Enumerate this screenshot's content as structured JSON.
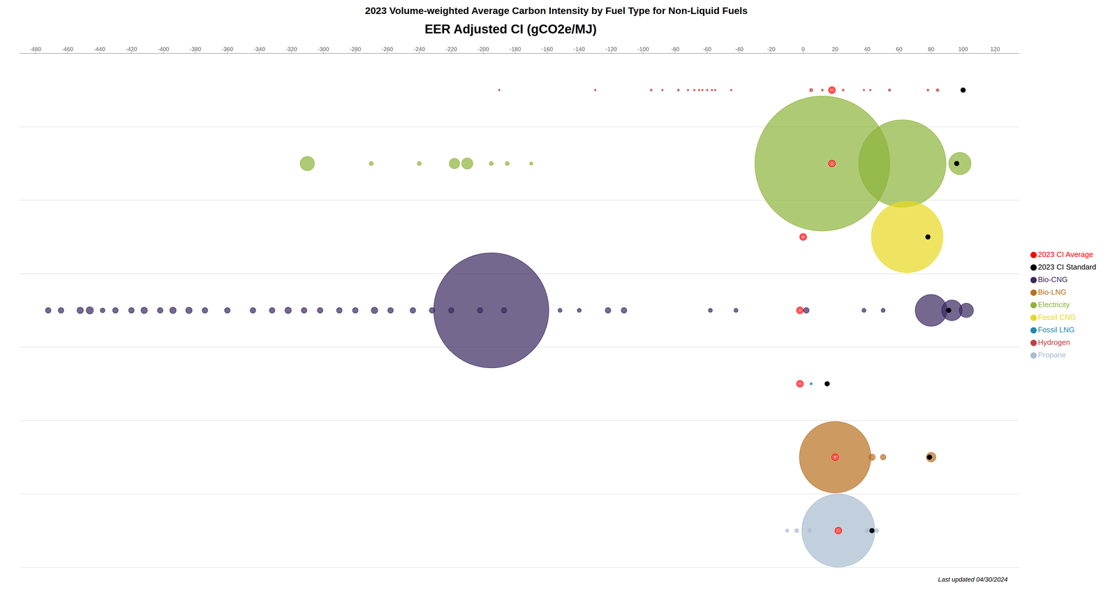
{
  "chart_data": {
    "type": "scatter",
    "title": "2023 Volume-weighted Average Carbon Intensity by Fuel Type for Non-Liquid Fuels",
    "xlabel": "EER Adjusted CI (gCO2e/MJ)",
    "annotations": [
      "Last updated 04/30/2024"
    ],
    "xlim": [
      -490,
      135
    ],
    "xticks": [
      -480,
      -460,
      -440,
      -420,
      -400,
      -380,
      -360,
      -340,
      -320,
      -300,
      -280,
      -260,
      -240,
      -220,
      -200,
      -180,
      -160,
      -140,
      -120,
      -100,
      -80,
      -60,
      -40,
      -20,
      0,
      20,
      40,
      60,
      80,
      100,
      120
    ],
    "grid": true,
    "legend": "right",
    "tick_labels": "x",
    "series": [
      {
        "name": "Hydrogen",
        "type": "bubble",
        "color": "#c04040",
        "x": [
          -190,
          -130,
          -95,
          -88,
          -78,
          -72,
          -68,
          -65,
          -63,
          -60,
          -57,
          -55,
          -45,
          5,
          12,
          18,
          25,
          38,
          42,
          54,
          78,
          84
        ],
        "sizes": [
          2,
          2,
          2.5,
          2,
          2.5,
          2,
          2,
          2,
          2,
          2,
          2,
          2,
          2,
          4,
          2.5,
          2,
          2.5,
          2,
          2,
          3,
          2.5,
          3.5
        ]
      },
      {
        "name": "Electricity",
        "type": "bubble",
        "color": "#8db33a",
        "x": [
          -310,
          -270,
          -240,
          -218,
          -210,
          -195,
          -185,
          -170,
          12,
          62,
          98
        ],
        "sizes": [
          18,
          5,
          5,
          13,
          14,
          5,
          5,
          4,
          170,
          110,
          28
        ]
      },
      {
        "name": "Fossil CNG",
        "type": "bubble",
        "color": "#e8d820",
        "x": [
          65
        ],
        "sizes": [
          90
        ]
      },
      {
        "name": "Bio-CNG",
        "type": "bubble",
        "color": "#3a2860",
        "x": [
          -472,
          -464,
          -452,
          -446,
          -438,
          -430,
          -420,
          -412,
          -402,
          -394,
          -384,
          -374,
          -360,
          -344,
          -332,
          -322,
          -312,
          -302,
          -290,
          -280,
          -268,
          -258,
          -244,
          -232,
          -220,
          -202,
          -187,
          -152,
          -140,
          -122,
          -112,
          -195,
          -58,
          -42,
          2,
          38,
          50,
          80,
          93,
          102
        ],
        "sizes": [
          7,
          7,
          8,
          9,
          6,
          7,
          7,
          8,
          7,
          8,
          8,
          7,
          7,
          7,
          7,
          8,
          7,
          7,
          7,
          7,
          8,
          7,
          7,
          7,
          7,
          7,
          7,
          5,
          5,
          7,
          7,
          145,
          5,
          5,
          7,
          5,
          5,
          40,
          26,
          18
        ]
      },
      {
        "name": "Fossil LNG",
        "type": "bubble",
        "color": "#2288aa",
        "x": [
          5,
          15
        ],
        "sizes": [
          3,
          3
        ]
      },
      {
        "name": "Bio-LNG",
        "type": "bubble",
        "color": "#b87020",
        "x": [
          20,
          43,
          50,
          80
        ],
        "sizes": [
          90,
          8,
          7,
          12
        ]
      },
      {
        "name": "Propane",
        "type": "bubble",
        "color": "#a8bcd0",
        "x": [
          -10,
          -4,
          4,
          22,
          40,
          46
        ],
        "sizes": [
          4,
          5,
          5,
          92,
          5,
          5
        ]
      },
      {
        "name": "2023 CI Average",
        "type": "scatter",
        "marker": "bullseye",
        "color": "red",
        "x": [
          18,
          18,
          0,
          -2,
          -2,
          20,
          22
        ]
      },
      {
        "name": "2023 CI Standard",
        "type": "scatter",
        "marker": "circle",
        "color": "black",
        "x": [
          100,
          96,
          78,
          91,
          15,
          79,
          43
        ]
      }
    ]
  }
}
